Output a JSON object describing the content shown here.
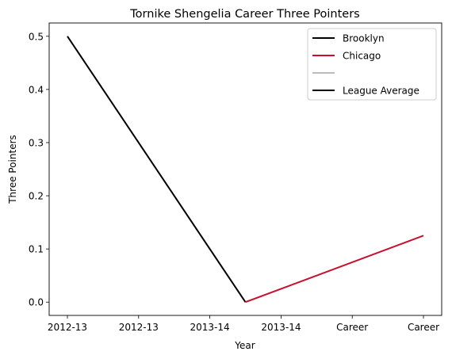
{
  "chart_data": {
    "type": "line",
    "title": "Tornike Shengelia Career Three Pointers",
    "xlabel": "Year",
    "ylabel": "Three Pointers",
    "categories": [
      "2012-13",
      "2012-13",
      "2013-14",
      "2013-14",
      "Career",
      "Career"
    ],
    "ylim": [
      -0.025,
      0.525
    ],
    "yticks": [
      "0.0",
      "0.1",
      "0.2",
      "0.3",
      "0.4",
      "0.5"
    ],
    "grid": false,
    "legend_position": "top-right",
    "series": [
      {
        "name": "Brooklyn",
        "color": "#000000",
        "x": [
          0,
          2.5
        ],
        "values": [
          0.5,
          0.0
        ]
      },
      {
        "name": "Chicago",
        "color": "#c8102e",
        "x": [
          2.5,
          5
        ],
        "values": [
          0.0,
          0.125
        ]
      },
      {
        "name": "",
        "color": "#bbbbbb",
        "x": [],
        "values": []
      },
      {
        "name": "League Average",
        "color": "#000000",
        "x": [],
        "values": []
      }
    ]
  }
}
